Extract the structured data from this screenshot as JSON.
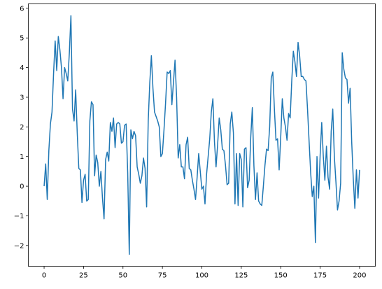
{
  "chart_data": {
    "type": "line",
    "x": [
      0,
      1,
      2,
      3,
      4,
      5,
      6,
      7,
      8,
      9,
      10,
      11,
      12,
      13,
      14,
      15,
      16,
      17,
      18,
      19,
      20,
      21,
      22,
      23,
      24,
      25,
      26,
      27,
      28,
      29,
      30,
      31,
      32,
      33,
      34,
      35,
      36,
      37,
      38,
      39,
      40,
      41,
      42,
      43,
      44,
      45,
      46,
      47,
      48,
      49,
      50,
      51,
      52,
      53,
      54,
      55,
      56,
      57,
      58,
      59,
      60,
      61,
      62,
      63,
      64,
      65,
      66,
      67,
      68,
      69,
      70,
      71,
      72,
      73,
      74,
      75,
      76,
      77,
      78,
      79,
      80,
      81,
      82,
      83,
      84,
      85,
      86,
      87,
      88,
      89,
      90,
      91,
      92,
      93,
      94,
      95,
      96,
      97,
      98,
      99,
      100,
      101,
      102,
      103,
      104,
      105,
      106,
      107,
      108,
      109,
      110,
      111,
      112,
      113,
      114,
      115,
      116,
      117,
      118,
      119,
      120,
      121,
      122,
      123,
      124,
      125,
      126,
      127,
      128,
      129,
      130,
      131,
      132,
      133,
      134,
      135,
      136,
      137,
      138,
      139,
      140,
      141,
      142,
      143,
      144,
      145,
      146,
      147,
      148,
      149,
      150,
      151,
      152,
      153,
      154,
      155,
      156,
      157,
      158,
      159,
      160,
      161,
      162,
      163,
      164,
      165,
      166,
      167,
      168,
      169,
      170,
      171,
      172,
      173,
      174,
      175,
      176,
      177,
      178,
      179,
      180,
      181,
      182,
      183,
      184,
      185,
      186,
      187,
      188,
      189,
      190,
      191,
      192,
      193,
      194,
      195,
      196,
      197,
      198,
      199,
      200
    ],
    "series": [
      {
        "color": "#1f77b4",
        "values": [
          0,
          0.75,
          -0.45,
          1.2,
          2.1,
          2.5,
          3.8,
          4.9,
          3.9,
          5.05,
          4.6,
          4.0,
          2.95,
          4.0,
          3.8,
          3.55,
          4.5,
          5.75,
          2.6,
          2.2,
          3.25,
          1.8,
          0.6,
          0.55,
          -0.55,
          0.2,
          0.4,
          -0.5,
          -0.45,
          2.2,
          2.85,
          2.75,
          0.35,
          1.05,
          0.8,
          0.0,
          0.5,
          -0.4,
          -1.1,
          0.9,
          1.15,
          0.85,
          2.15,
          1.85,
          2.3,
          1.3,
          2.1,
          2.15,
          2.1,
          1.45,
          1.5,
          2.05,
          2.1,
          0.45,
          -2.3,
          1.9,
          1.6,
          1.85,
          1.7,
          0.65,
          0.4,
          0.1,
          0.35,
          0.95,
          0.6,
          -0.7,
          2.2,
          3.5,
          4.4,
          3.3,
          2.5,
          2.35,
          2.2,
          2.0,
          1.0,
          1.1,
          1.9,
          2.8,
          3.85,
          3.8,
          3.9,
          2.75,
          3.5,
          4.25,
          3.0,
          0.95,
          1.4,
          0.65,
          0.65,
          0.25,
          1.4,
          1.65,
          0.6,
          0.55,
          0.2,
          -0.1,
          -0.45,
          0.3,
          1.1,
          0.5,
          -0.1,
          0.0,
          -0.6,
          0.4,
          1.0,
          1.6,
          2.5,
          2.95,
          1.5,
          0.65,
          1.4,
          2.3,
          1.9,
          1.25,
          1.2,
          0.7,
          0.05,
          0.1,
          2.1,
          2.5,
          1.8,
          -0.6,
          1.1,
          -0.65,
          1.1,
          0.9,
          -0.7,
          1.25,
          1.3,
          -0.05,
          0.2,
          1.65,
          2.65,
          0.7,
          -0.45,
          0.45,
          -0.5,
          -0.6,
          -0.65,
          0.0,
          0.7,
          1.25,
          1.2,
          2.0,
          3.65,
          3.85,
          2.6,
          1.55,
          1.6,
          0.55,
          1.65,
          2.95,
          2.3,
          2.0,
          1.55,
          2.45,
          2.3,
          3.55,
          4.55,
          4.2,
          3.7,
          4.85,
          4.4,
          3.7,
          3.7,
          3.6,
          3.55,
          2.6,
          1.5,
          0.45,
          -0.35,
          0.0,
          -1.9,
          1.0,
          -0.4,
          1.05,
          2.15,
          1.0,
          0.2,
          1.35,
          0.3,
          -0.1,
          1.85,
          2.6,
          1.0,
          0.15,
          -0.8,
          -0.5,
          0.1,
          4.5,
          3.95,
          3.65,
          3.6,
          2.8,
          3.3,
          1.5,
          0.25,
          -0.75,
          0.55,
          -0.4,
          0.55
        ]
      }
    ],
    "xlim": [
      -10,
      210
    ],
    "ylim": [
      -2.7,
      6.15
    ],
    "xticks": [
      0,
      25,
      50,
      75,
      100,
      125,
      150,
      175,
      200
    ],
    "yticks": [
      {
        "value": -2,
        "label": "−2"
      },
      {
        "value": -1,
        "label": "−1"
      },
      0,
      1,
      2,
      3,
      4,
      5,
      6
    ]
  }
}
